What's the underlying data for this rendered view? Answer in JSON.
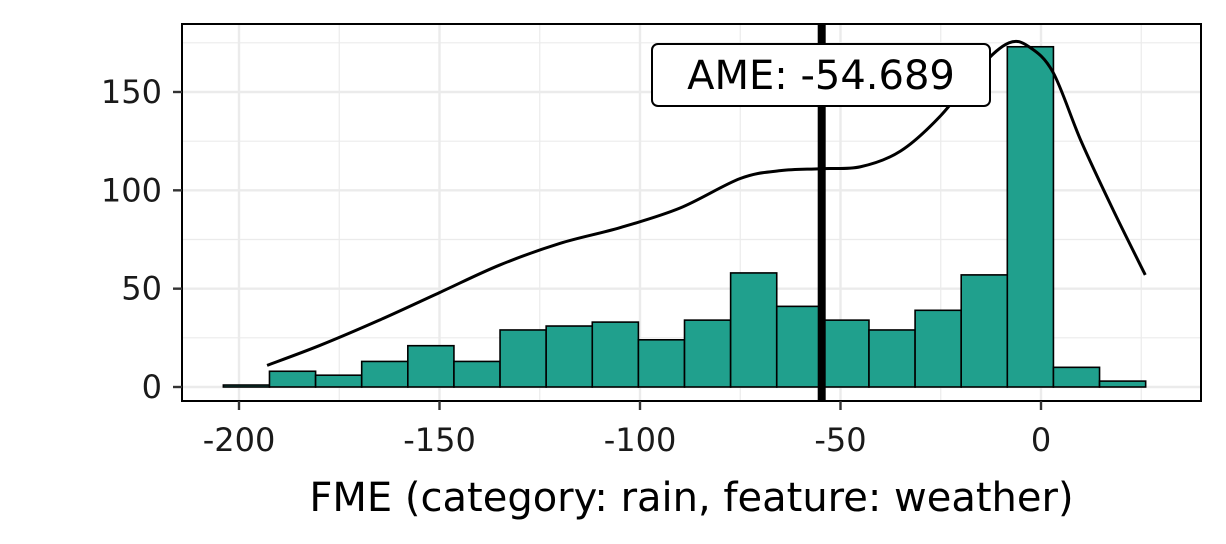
{
  "chart_data": {
    "type": "bar",
    "title": "",
    "xlabel": "FME (category: rain, feature: weather)",
    "ylabel": "",
    "xlim": [
      -213.5,
      40
    ],
    "ylim": [
      -7.5,
      183
    ],
    "xticks": [
      -200,
      -150,
      -100,
      -50,
      0
    ],
    "xtick_labels": [
      "-200",
      "-150",
      "-100",
      "-50",
      "0"
    ],
    "yticks": [
      0,
      50,
      100,
      150
    ],
    "ytick_labels": [
      "0",
      "50",
      "100",
      "150"
    ],
    "grid": true,
    "bin_width": 11.5,
    "bins": [
      {
        "x0": -203.9,
        "x1": -192.4,
        "count": 1
      },
      {
        "x0": -192.4,
        "x1": -180.9,
        "count": 8
      },
      {
        "x0": -180.9,
        "x1": -169.4,
        "count": 6
      },
      {
        "x0": -169.4,
        "x1": -157.9,
        "count": 13
      },
      {
        "x0": -157.9,
        "x1": -146.4,
        "count": 21
      },
      {
        "x0": -146.4,
        "x1": -134.9,
        "count": 13
      },
      {
        "x0": -134.9,
        "x1": -123.4,
        "count": 29
      },
      {
        "x0": -123.4,
        "x1": -111.9,
        "count": 31
      },
      {
        "x0": -111.9,
        "x1": -100.4,
        "count": 33
      },
      {
        "x0": -100.4,
        "x1": -88.9,
        "count": 24
      },
      {
        "x0": -88.9,
        "x1": -77.4,
        "count": 34
      },
      {
        "x0": -77.4,
        "x1": -65.9,
        "count": 58
      },
      {
        "x0": -65.9,
        "x1": -54.4,
        "count": 41
      },
      {
        "x0": -54.4,
        "x1": -42.9,
        "count": 34
      },
      {
        "x0": -42.9,
        "x1": -31.4,
        "count": 29
      },
      {
        "x0": -31.4,
        "x1": -19.9,
        "count": 39
      },
      {
        "x0": -19.9,
        "x1": -8.4,
        "count": 57
      },
      {
        "x0": -8.4,
        "x1": 3.1,
        "count": 173
      },
      {
        "x0": 3.1,
        "x1": 14.6,
        "count": 10
      },
      {
        "x0": 14.6,
        "x1": 26.1,
        "count": 3
      }
    ],
    "density_curve": {
      "x": [
        -193,
        -180,
        -165,
        -150,
        -135,
        -120,
        -105,
        -90,
        -75,
        -65,
        -55,
        -45,
        -35,
        -25,
        -15,
        -8,
        -3,
        3,
        10,
        18,
        26
      ],
      "y": [
        11,
        21,
        34,
        48,
        62,
        73,
        81,
        91,
        106,
        110,
        111,
        112,
        120,
        138,
        163,
        175,
        173,
        160,
        125,
        90,
        57
      ]
    },
    "ame": {
      "value": -54.689,
      "label": "AME: -54.689"
    },
    "colors": {
      "bar_fill": "#20A08D",
      "bar_stroke": "#000000",
      "line": "#000000",
      "grid": "#EBEBEB",
      "panel_border": "#000000"
    }
  }
}
